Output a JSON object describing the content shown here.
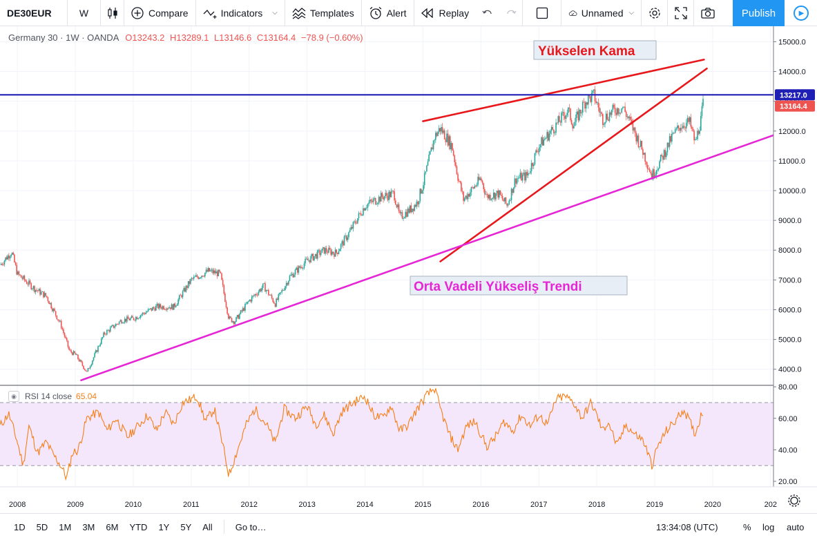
{
  "toolbar": {
    "symbol": "DE30EUR",
    "interval": "W",
    "compare": "Compare",
    "indicators": "Indicators",
    "templates": "Templates",
    "alert": "Alert",
    "replay": "Replay",
    "layout_name": "Unnamed",
    "publish": "Publish"
  },
  "legend": {
    "title": "Germany 30 · 1W · OANDA",
    "open": "O13243.2",
    "high": "H13289.1",
    "low": "L13146.6",
    "close": "C13164.4",
    "change": "−78.9 (−0.60%)"
  },
  "rsi_legend": {
    "label": "RSI 14 close",
    "value": "65.04"
  },
  "bottom": {
    "ranges": [
      "1D",
      "5D",
      "1M",
      "3M",
      "6M",
      "YTD",
      "1Y",
      "5Y",
      "All"
    ],
    "goto": "Go to…",
    "time": "13:34:08 (UTC)",
    "percent": "%",
    "log": "log",
    "auto": "auto"
  },
  "colors": {
    "up": "#26a69a",
    "down": "#ef5350",
    "wedge": "#e8171b",
    "trend": "#e626d6",
    "hline": "#1f1fb5",
    "rsi": "#f57f17",
    "rsi_band": "#f4e6fb"
  },
  "chart_data": [
    {
      "type": "candlestick",
      "title": "Germany 30 · 1W · OANDA",
      "x_ticks": [
        "2008",
        "2009",
        "2010",
        "2011",
        "2012",
        "2013",
        "2014",
        "2015",
        "2016",
        "2017",
        "2018",
        "2019",
        "2020",
        "202"
      ],
      "y_ticks": [
        "15000.0",
        "14000.0",
        "13000.0",
        "12000.0",
        "11000.0",
        "10000.0",
        "9000.0",
        "8000.0",
        "7000.0",
        "6000.0",
        "5000.0",
        "4000.0"
      ],
      "xlim": [
        2007.7,
        2021.05
      ],
      "ylim": [
        3460,
        15520
      ],
      "price_series": {
        "name": "",
        "x": [
          2007.7,
          2007.9,
          2008.0,
          2008.3,
          2008.5,
          2008.75,
          2008.9,
          2009.0,
          2009.2,
          2009.5,
          2009.8,
          2010.0,
          2010.4,
          2010.7,
          2011.0,
          2011.3,
          2011.5,
          2011.65,
          2011.75,
          2012.0,
          2012.25,
          2012.45,
          2012.7,
          2013.0,
          2013.3,
          2013.5,
          2013.7,
          2014.0,
          2014.3,
          2014.5,
          2014.6,
          2014.8,
          2014.9,
          2015.0,
          2015.2,
          2015.3,
          2015.5,
          2015.6,
          2015.7,
          2016.0,
          2016.1,
          2016.3,
          2016.45,
          2016.6,
          2016.8,
          2017.0,
          2017.3,
          2017.5,
          2017.6,
          2017.8,
          2017.95,
          2018.1,
          2018.3,
          2018.45,
          2018.6,
          2018.8,
          2018.95,
          2019.1,
          2019.3,
          2019.45,
          2019.6,
          2019.7,
          2019.8,
          2019.85
        ],
        "close": [
          7500,
          7950,
          7200,
          6700,
          6450,
          5500,
          4600,
          4500,
          3900,
          5200,
          5650,
          5700,
          6100,
          6100,
          7000,
          7300,
          7200,
          5700,
          5600,
          6300,
          6800,
          6200,
          7100,
          7650,
          8000,
          7900,
          8500,
          9500,
          9800,
          9900,
          9100,
          9400,
          9600,
          10200,
          11800,
          12100,
          11500,
          10500,
          9700,
          10400,
          9800,
          9900,
          9500,
          10400,
          10500,
          11500,
          12200,
          12700,
          12200,
          13000,
          13200,
          12400,
          12700,
          12800,
          12200,
          11300,
          10500,
          11000,
          11800,
          12200,
          12300,
          11600,
          12400,
          13164
        ]
      },
      "horizontal_line": {
        "value": 13217.0,
        "label": "13217.0"
      },
      "last_price": {
        "value": 13164.4,
        "label": "13164.4"
      },
      "annotations": [
        {
          "text": "Yükselen Kama",
          "color": "#e8171b"
        },
        {
          "text": "Orta Vadeli Yükseliş Trendi",
          "color": "#e626d6"
        }
      ],
      "trendlines": [
        {
          "name": "wedge-upper",
          "from": [
            2015.0,
            12330
          ],
          "to": [
            2019.85,
            14400
          ]
        },
        {
          "name": "wedge-lower",
          "from": [
            2015.3,
            7620
          ],
          "to": [
            2019.9,
            14100
          ]
        },
        {
          "name": "medium-term-trend",
          "from": [
            2009.1,
            3630
          ],
          "to": [
            2021.05,
            11860
          ]
        }
      ],
      "grid": true
    },
    {
      "type": "line",
      "title": "RSI 14 close",
      "y_ticks": [
        "80.00",
        "60.00",
        "40.00",
        "20.00"
      ],
      "ylim": [
        16.5,
        80.5
      ],
      "band": [
        30,
        70
      ],
      "series": [
        {
          "name": "RSI 14 close",
          "x": [
            2007.7,
            2007.85,
            2008.0,
            2008.1,
            2008.2,
            2008.35,
            2008.5,
            2008.6,
            2008.75,
            2008.85,
            2008.95,
            2009.05,
            2009.2,
            2009.4,
            2009.55,
            2009.7,
            2009.9,
            2010.1,
            2010.25,
            2010.4,
            2010.55,
            2010.7,
            2010.85,
            2011.0,
            2011.1,
            2011.25,
            2011.4,
            2011.55,
            2011.65,
            2011.8,
            2011.95,
            2012.1,
            2012.3,
            2012.45,
            2012.6,
            2012.8,
            2013.0,
            2013.15,
            2013.3,
            2013.45,
            2013.6,
            2013.8,
            2014.0,
            2014.15,
            2014.3,
            2014.45,
            2014.6,
            2014.75,
            2014.9,
            2015.05,
            2015.2,
            2015.3,
            2015.45,
            2015.6,
            2015.75,
            2015.9,
            2016.1,
            2016.25,
            2016.4,
            2016.55,
            2016.7,
            2016.85,
            2017.0,
            2017.15,
            2017.3,
            2017.45,
            2017.6,
            2017.75,
            2017.9,
            2018.0,
            2018.1,
            2018.2,
            2018.35,
            2018.5,
            2018.65,
            2018.8,
            2018.9,
            2018.95,
            2019.05,
            2019.2,
            2019.35,
            2019.5,
            2019.6,
            2019.7,
            2019.8,
            2019.85
          ],
          "values": [
            55,
            63,
            45,
            30,
            55,
            38,
            45,
            38,
            30,
            22,
            38,
            40,
            60,
            64,
            52,
            60,
            48,
            56,
            62,
            52,
            64,
            56,
            70,
            72,
            74,
            58,
            66,
            42,
            24,
            40,
            56,
            66,
            56,
            44,
            66,
            60,
            68,
            56,
            62,
            50,
            64,
            70,
            74,
            62,
            60,
            68,
            52,
            56,
            66,
            74,
            79,
            66,
            50,
            40,
            55,
            58,
            42,
            48,
            58,
            52,
            62,
            55,
            62,
            56,
            72,
            74,
            70,
            60,
            70,
            62,
            52,
            58,
            42,
            56,
            50,
            46,
            36,
            30,
            42,
            52,
            58,
            66,
            58,
            50,
            62,
            65.04
          ]
        }
      ],
      "grid": true
    }
  ]
}
